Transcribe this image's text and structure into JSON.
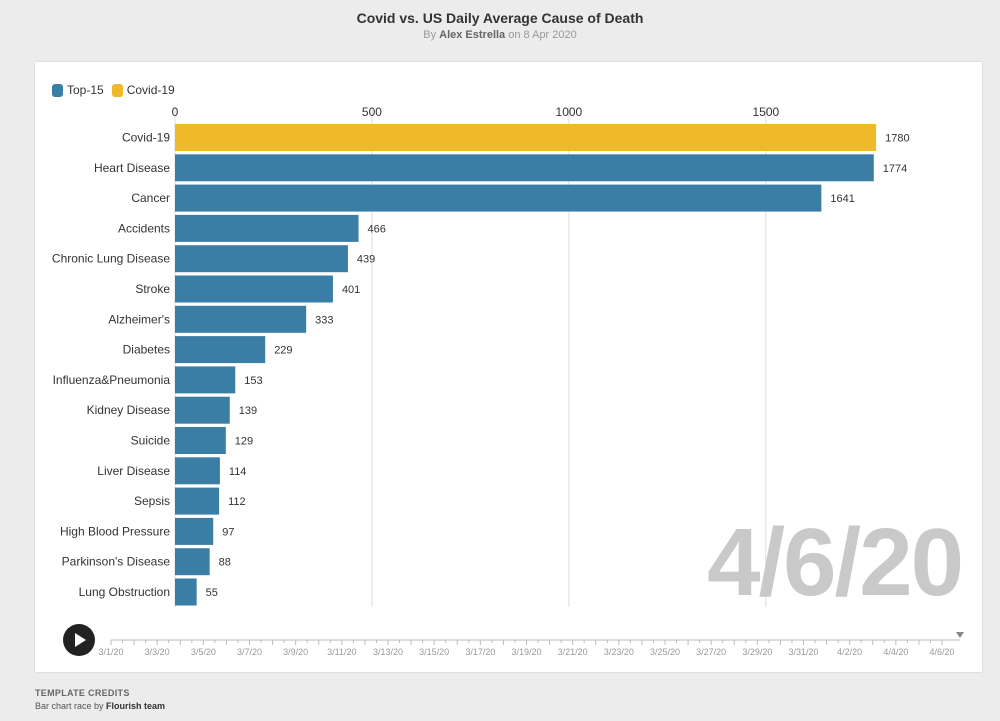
{
  "header": {
    "title": "Covid vs. US Daily Average Cause of Death",
    "by_prefix": "By ",
    "author": "Alex Estrella",
    "date_text": " on 8 Apr 2020"
  },
  "legend": [
    {
      "label": "Top-15",
      "color": "#3a7ea6"
    },
    {
      "label": "Covid-19",
      "color": "#f0b929"
    }
  ],
  "colors": {
    "top15": "#3a7ea6",
    "covid": "#f0b929",
    "grid": "#dddddd"
  },
  "current_date": "4/6/20",
  "timeline": {
    "ticks": [
      "3/1/20",
      "3/3/20",
      "3/5/20",
      "3/7/20",
      "3/9/20",
      "3/11/20",
      "3/13/20",
      "3/15/20",
      "3/17/20",
      "3/19/20",
      "3/21/20",
      "3/23/20",
      "3/25/20",
      "3/27/20",
      "3/29/20",
      "3/31/20",
      "4/2/20",
      "4/4/20",
      "4/6/20"
    ],
    "position": 1.0
  },
  "credits": {
    "label": "TEMPLATE CREDITS",
    "text": "Bar chart race by ",
    "team": "Flourish team"
  },
  "chart_data": {
    "type": "bar",
    "orientation": "horizontal",
    "xlim": [
      0,
      1800
    ],
    "x_ticks": [
      0,
      500,
      1000,
      1500
    ],
    "grid": true,
    "legend_position": "top-left",
    "categories": [
      "Covid-19",
      "Heart Disease",
      "Cancer",
      "Accidents",
      "Chronic Lung Disease",
      "Stroke",
      "Alzheimer's",
      "Diabetes",
      "Influenza&Pneumonia",
      "Kidney Disease",
      "Suicide",
      "Liver Disease",
      "Sepsis",
      "High Blood Pressure",
      "Parkinson's Disease",
      "Lung Obstruction"
    ],
    "values": [
      1780,
      1774,
      1641,
      466,
      439,
      401,
      333,
      229,
      153,
      139,
      129,
      114,
      112,
      97,
      88,
      55
    ],
    "series_of_each": [
      "Covid-19",
      "Top-15",
      "Top-15",
      "Top-15",
      "Top-15",
      "Top-15",
      "Top-15",
      "Top-15",
      "Top-15",
      "Top-15",
      "Top-15",
      "Top-15",
      "Top-15",
      "Top-15",
      "Top-15",
      "Top-15"
    ]
  }
}
